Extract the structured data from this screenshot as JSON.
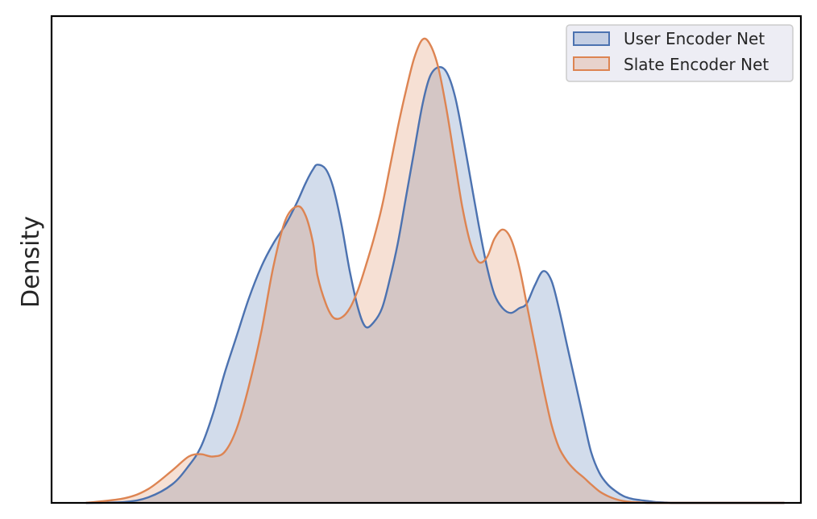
{
  "chart_data": {
    "type": "area",
    "title": "",
    "xlabel": "",
    "ylabel": "Density",
    "xlim": [
      0,
      1
    ],
    "ylim": [
      0,
      1
    ],
    "x_ticks": "none",
    "y_ticks": "none",
    "grid": false,
    "legend_position": "top-right",
    "series": [
      {
        "name": "User Encoder Net",
        "color": "#4c72b0",
        "fill": "#4c72b0",
        "fill_opacity": 0.25,
        "x": [
          0.046,
          0.097,
          0.129,
          0.161,
          0.183,
          0.199,
          0.215,
          0.231,
          0.247,
          0.263,
          0.28,
          0.296,
          0.312,
          0.328,
          0.339,
          0.349,
          0.355,
          0.366,
          0.376,
          0.387,
          0.398,
          0.409,
          0.419,
          0.43,
          0.441,
          0.451,
          0.462,
          0.473,
          0.484,
          0.495,
          0.505,
          0.516,
          0.527,
          0.538,
          0.548,
          0.559,
          0.57,
          0.581,
          0.591,
          0.602,
          0.613,
          0.624,
          0.634,
          0.645,
          0.656,
          0.667,
          0.677,
          0.688,
          0.699,
          0.71,
          0.72,
          0.731,
          0.742,
          0.753,
          0.763,
          0.774,
          0.785,
          0.796,
          0.806,
          0.817,
          0.828,
          0.839,
          0.849,
          0.86,
          0.871,
          0.892,
          0.914,
          0.935,
          0.957,
          0.978
        ],
        "y": [
          0.0,
          0.002,
          0.012,
          0.04,
          0.08,
          0.12,
          0.19,
          0.28,
          0.36,
          0.44,
          0.51,
          0.56,
          0.6,
          0.65,
          0.69,
          0.72,
          0.73,
          0.72,
          0.68,
          0.6,
          0.5,
          0.42,
          0.38,
          0.39,
          0.42,
          0.48,
          0.56,
          0.66,
          0.76,
          0.86,
          0.92,
          0.94,
          0.93,
          0.88,
          0.8,
          0.7,
          0.6,
          0.51,
          0.45,
          0.42,
          0.41,
          0.42,
          0.43,
          0.47,
          0.5,
          0.48,
          0.42,
          0.34,
          0.26,
          0.18,
          0.11,
          0.065,
          0.04,
          0.025,
          0.015,
          0.009,
          0.006,
          0.004,
          0.002,
          0.001,
          0.0,
          0.0,
          0.0,
          0.0,
          0.0,
          0.0,
          0.0,
          0.0,
          0.0,
          0.0
        ]
      },
      {
        "name": "Slate Encoder Net",
        "color": "#dd8452",
        "fill": "#dd8452",
        "fill_opacity": 0.25,
        "x": [
          0.046,
          0.097,
          0.129,
          0.161,
          0.183,
          0.199,
          0.215,
          0.231,
          0.247,
          0.263,
          0.28,
          0.296,
          0.312,
          0.328,
          0.339,
          0.349,
          0.355,
          0.366,
          0.376,
          0.387,
          0.398,
          0.409,
          0.419,
          0.43,
          0.441,
          0.451,
          0.462,
          0.473,
          0.484,
          0.495,
          0.505,
          0.516,
          0.527,
          0.538,
          0.548,
          0.559,
          0.57,
          0.581,
          0.591,
          0.602,
          0.613,
          0.624,
          0.634,
          0.645,
          0.656,
          0.667,
          0.677,
          0.688,
          0.699,
          0.71,
          0.72,
          0.731,
          0.742,
          0.753,
          0.763,
          0.774,
          0.785,
          0.796,
          0.806,
          0.817,
          0.828,
          0.839,
          0.849,
          0.86,
          0.871,
          0.892,
          0.914,
          0.935,
          0.957,
          0.978
        ],
        "y": [
          0.0,
          0.01,
          0.03,
          0.07,
          0.1,
          0.105,
          0.1,
          0.11,
          0.16,
          0.25,
          0.37,
          0.51,
          0.61,
          0.64,
          0.62,
          0.56,
          0.49,
          0.43,
          0.4,
          0.4,
          0.42,
          0.46,
          0.51,
          0.57,
          0.64,
          0.72,
          0.81,
          0.89,
          0.96,
          1.0,
          0.99,
          0.94,
          0.85,
          0.74,
          0.64,
          0.56,
          0.52,
          0.53,
          0.57,
          0.59,
          0.57,
          0.51,
          0.43,
          0.34,
          0.25,
          0.17,
          0.12,
          0.09,
          0.07,
          0.055,
          0.04,
          0.025,
          0.015,
          0.008,
          0.004,
          0.002,
          0.001,
          0.0,
          0.0,
          0.0,
          0.0,
          0.0,
          0.0,
          0.0,
          0.0,
          0.0,
          0.0,
          0.0,
          0.0,
          0.0
        ]
      }
    ]
  }
}
